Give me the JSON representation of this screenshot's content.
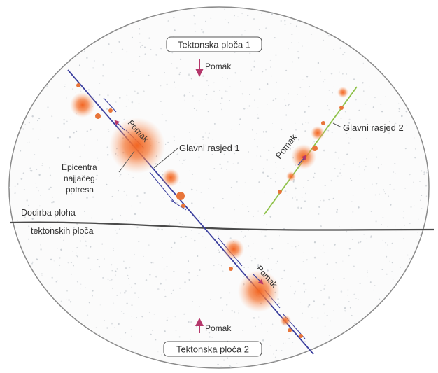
{
  "labels": {
    "plate_top": "Tektonska ploča 1",
    "plate_bottom": "Tektonska ploča 2",
    "shift_top": "Pomak",
    "shift_bottom": "Pomak",
    "shift_fault1_upper": "Pomak",
    "shift_fault1_lower": "Pomak",
    "shift_fault2": "Pomak",
    "main_fault_1": "Glavni rasjed 1",
    "main_fault_2": "Glavni rasjed 2",
    "epicentre_line1": "Epicentra",
    "epicentre_line2": "najjačeg",
    "epicentre_line3": "potresa",
    "contact_line1": "Dodirba ploha",
    "contact_line2": "tektonskih ploča"
  },
  "colors": {
    "background_speckle": "#c9ced3",
    "ellipse_stroke": "#8a8a8a",
    "fault1_line": "#3b3f9e",
    "fault2_line": "#8fc24a",
    "contact_line": "#4a4a4a",
    "quake_glow": "#f26522",
    "arrow": "#b5376b",
    "label_box": "#555555"
  }
}
